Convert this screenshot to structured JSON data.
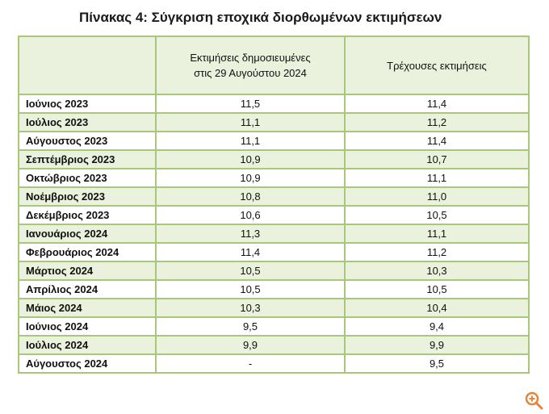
{
  "title": "Πίνακας 4: Σύγκριση εποχικά διορθωμένων εκτιμήσεων",
  "table": {
    "headers": [
      "",
      "Εκτιμήσεις δημοσιευμένες\nστις 29 Αυγούστου 2024",
      "Τρέχουσες εκτιμήσεις"
    ],
    "rows": [
      [
        "Ιούνιος 2023",
        "11,5",
        "11,4"
      ],
      [
        "Ιούλιος 2023",
        "11,1",
        "11,2"
      ],
      [
        "Αύγουστος 2023",
        "11,1",
        "11,4"
      ],
      [
        "Σεπτέμβριος 2023",
        "10,9",
        "10,7"
      ],
      [
        "Οκτώβριος 2023",
        "10,9",
        "11,1"
      ],
      [
        "Νοέμβριος 2023",
        "10,8",
        "11,0"
      ],
      [
        "Δεκέμβριος 2023",
        "10,6",
        "10,5"
      ],
      [
        "Ιανουάριος 2024",
        "11,3",
        "11,1"
      ],
      [
        "Φεβρουάριος 2024",
        "11,4",
        "11,2"
      ],
      [
        "Μάρτιος 2024",
        "10,5",
        "10,3"
      ],
      [
        "Απρίλιος 2024",
        "10,5",
        "10,5"
      ],
      [
        "Μάιος 2024",
        "10,3",
        "10,4"
      ],
      [
        "Ιούνιος 2024",
        "9,5",
        "9,4"
      ],
      [
        "Ιούλιος 2024",
        "9,9",
        "9,9"
      ],
      [
        "Αύγουστος 2024",
        "-",
        "9,5"
      ]
    ]
  },
  "icons": {
    "zoom": "zoom-in-icon"
  },
  "colors": {
    "border": "#a9c77a",
    "stripe": "#eaf1dd",
    "zoom_icon": "#e8833a"
  }
}
